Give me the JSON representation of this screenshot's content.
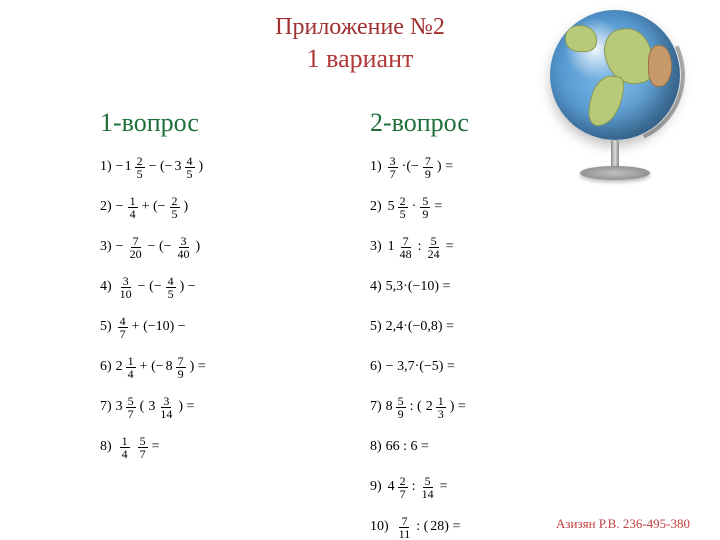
{
  "colors": {
    "title": "#a03030",
    "subtitle": "#b03838",
    "heading": "#1f6f3a",
    "footer": "#c04040",
    "body_text": "#000000",
    "background": "#ffffff"
  },
  "title": "Приложение №2",
  "subtitle": "1  вариант",
  "columns": [
    {
      "heading": "1-вопрос",
      "problems": [
        {
          "n": "1)",
          "parts": [
            {
              "t": "mixed",
              "sign": "−",
              "whole": "1",
              "num": "2",
              "den": "5"
            },
            {
              "t": "op",
              "v": "− (−"
            },
            {
              "t": "mixed",
              "whole": "3",
              "num": "4",
              "den": "5"
            },
            {
              "t": "op",
              "v": ")"
            }
          ]
        },
        {
          "n": "2)",
          "parts": [
            {
              "t": "op",
              "v": "−"
            },
            {
              "t": "frac",
              "num": "1",
              "den": "4"
            },
            {
              "t": "op",
              "v": "+ (−"
            },
            {
              "t": "frac",
              "num": "2",
              "den": "5"
            },
            {
              "t": "op",
              "v": ")"
            }
          ]
        },
        {
          "n": "3)",
          "parts": [
            {
              "t": "op",
              "v": "−"
            },
            {
              "t": "frac",
              "num": "7",
              "den": "20"
            },
            {
              "t": "op",
              "v": "− (−"
            },
            {
              "t": "frac",
              "num": "3",
              "den": "40"
            },
            {
              "t": "op",
              "v": ")"
            }
          ]
        },
        {
          "n": "4)",
          "parts": [
            {
              "t": "frac",
              "num": "3",
              "den": "10"
            },
            {
              "t": "op",
              "v": "− (−"
            },
            {
              "t": "frac",
              "num": "4",
              "den": "5"
            },
            {
              "t": "op",
              "v": ") −"
            }
          ]
        },
        {
          "n": "5)",
          "parts": [
            {
              "t": "frac",
              "num": "4",
              "den": "7"
            },
            {
              "t": "op",
              "v": "+ (−10) −"
            }
          ]
        },
        {
          "n": "6)",
          "parts": [
            {
              "t": "mixed",
              "whole": "2",
              "num": "1",
              "den": "4"
            },
            {
              "t": "op",
              "v": "+ (−"
            },
            {
              "t": "mixed",
              "whole": "8",
              "num": "7",
              "den": "9"
            },
            {
              "t": "op",
              "v": ") ="
            }
          ]
        },
        {
          "n": "7)",
          "parts": [
            {
              "t": "mixed",
              "whole": "3",
              "num": "5",
              "den": "7"
            },
            {
              "t": "op",
              "v": "   ("
            },
            {
              "t": "op",
              "v": " "
            },
            {
              "t": "mixed",
              "whole": "3",
              "num": "3",
              "den": "14"
            },
            {
              "t": "op",
              "v": ") ="
            }
          ]
        },
        {
          "n": "8)",
          "parts": [
            {
              "t": "op",
              "v": " "
            },
            {
              "t": "frac",
              "num": "1",
              "den": "4"
            },
            {
              "t": "op",
              "v": "   "
            },
            {
              "t": "frac",
              "num": "5",
              "den": "7"
            },
            {
              "t": "op",
              "v": " ="
            }
          ]
        }
      ]
    },
    {
      "heading": "2-вопрос",
      "problems": [
        {
          "n": "1)",
          "parts": [
            {
              "t": "frac",
              "num": "3",
              "den": "7"
            },
            {
              "t": "op",
              "v": "·(−"
            },
            {
              "t": "frac",
              "num": "7",
              "den": "9"
            },
            {
              "t": "op",
              "v": ") ="
            }
          ]
        },
        {
          "n": "2)",
          "parts": [
            {
              "t": "op",
              "v": " "
            },
            {
              "t": "mixed",
              "whole": "5",
              "num": "2",
              "den": "5"
            },
            {
              "t": "op",
              "v": "·"
            },
            {
              "t": "frac",
              "num": "5",
              "den": "9"
            },
            {
              "t": "op",
              "v": " ="
            }
          ]
        },
        {
          "n": "3)",
          "parts": [
            {
              "t": "op",
              "v": " "
            },
            {
              "t": "mixed",
              "whole": "1",
              "num": "7",
              "den": "48"
            },
            {
              "t": "op",
              "v": " : "
            },
            {
              "t": "frac",
              "num": "5",
              "den": "24"
            },
            {
              "t": "op",
              "v": " ="
            }
          ]
        },
        {
          "n": "4)",
          "parts": [
            {
              "t": "op",
              "v": "5,3·(−10) ="
            }
          ]
        },
        {
          "n": "5)",
          "parts": [
            {
              "t": "op",
              "v": "2,4·(−0,8) ="
            }
          ]
        },
        {
          "n": "6)",
          "parts": [
            {
              "t": "op",
              "v": "− 3,7·(−5) ="
            }
          ]
        },
        {
          "n": "7)",
          "parts": [
            {
              "t": "mixed",
              "whole": "8",
              "num": "5",
              "den": "9"
            },
            {
              "t": "op",
              "v": " : ( "
            },
            {
              "t": "op",
              "v": " "
            },
            {
              "t": "mixed",
              "whole": "2",
              "num": "1",
              "den": "3"
            },
            {
              "t": "op",
              "v": ") ="
            }
          ]
        },
        {
          "n": "8)",
          "parts": [
            {
              "t": "op",
              "v": "  66 : 6 ="
            }
          ]
        },
        {
          "n": "9)",
          "parts": [
            {
              "t": "op",
              "v": " "
            },
            {
              "t": "mixed",
              "whole": "4",
              "num": "2",
              "den": "7"
            },
            {
              "t": "op",
              "v": " : "
            },
            {
              "t": "frac",
              "num": "5",
              "den": "14"
            },
            {
              "t": "op",
              "v": " ="
            }
          ]
        },
        {
          "n": "10)",
          "parts": [
            {
              "t": "op",
              "v": " "
            },
            {
              "t": "frac",
              "num": "7",
              "den": "11"
            },
            {
              "t": "op",
              "v": " : ( "
            },
            {
              "t": "op",
              "v": " 28) ="
            }
          ]
        }
      ]
    }
  ],
  "footer": "Азизян Р.В. 236-495-380",
  "globe": {
    "semantic": "world-globe-on-stand",
    "sphere_colors": [
      "#7fb8e6",
      "#5a9dd4",
      "#3a7cb8"
    ],
    "land_colors": [
      "#b8c97a",
      "#c79a6b"
    ],
    "stand_color": "#b0b0b0"
  }
}
